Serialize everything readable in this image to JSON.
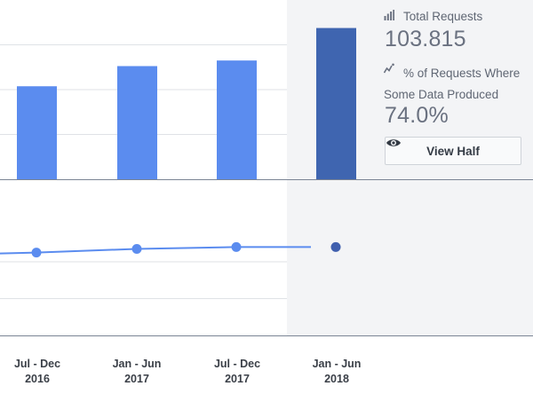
{
  "colors": {
    "bar": "#5b8cef",
    "bar_highlight": "#3f65b0",
    "line": "#5b8cef",
    "line_point_highlight": "#3f5fae",
    "highlight_bg": "#f3f4f6",
    "grid": "#dfe2e6",
    "axis": "#7a8494"
  },
  "stats": {
    "total_requests_label": "Total Requests",
    "total_requests_value": "103.815",
    "pct_label": "% of Requests Where Some Data Produced",
    "pct_value": "74.0%",
    "total_icon": "bar-chart-icon",
    "pct_icon": "trend-line-icon"
  },
  "view_button": {
    "label": "View Half",
    "icon": "eye-icon"
  },
  "x_labels": [
    {
      "period": "Jul - Dec",
      "year": "2016"
    },
    {
      "period": "Jan - Jun",
      "year": "2017"
    },
    {
      "period": "Jul - Dec",
      "year": "2017"
    },
    {
      "period": "Jan - Jun",
      "year": "2018"
    }
  ],
  "chart_data": [
    {
      "type": "bar",
      "categories": [
        "Jul - Dec 2016",
        "Jan - Jun 2017",
        "Jul - Dec 2017",
        "Jan - Jun 2018"
      ],
      "values": [
        83,
        101,
        106,
        135
      ],
      "highlighted_index": 3,
      "ylim": [
        0,
        160
      ],
      "grid": true
    },
    {
      "type": "line",
      "categories": [
        "Jul - Dec 2016",
        "Jan - Jun 2017",
        "Jul - Dec 2017",
        "Jan - Jun 2018"
      ],
      "values": [
        72.5,
        73.5,
        74.0,
        74.0
      ],
      "highlighted_index": 3,
      "ylim": [
        50,
        90
      ],
      "grid": true
    }
  ]
}
